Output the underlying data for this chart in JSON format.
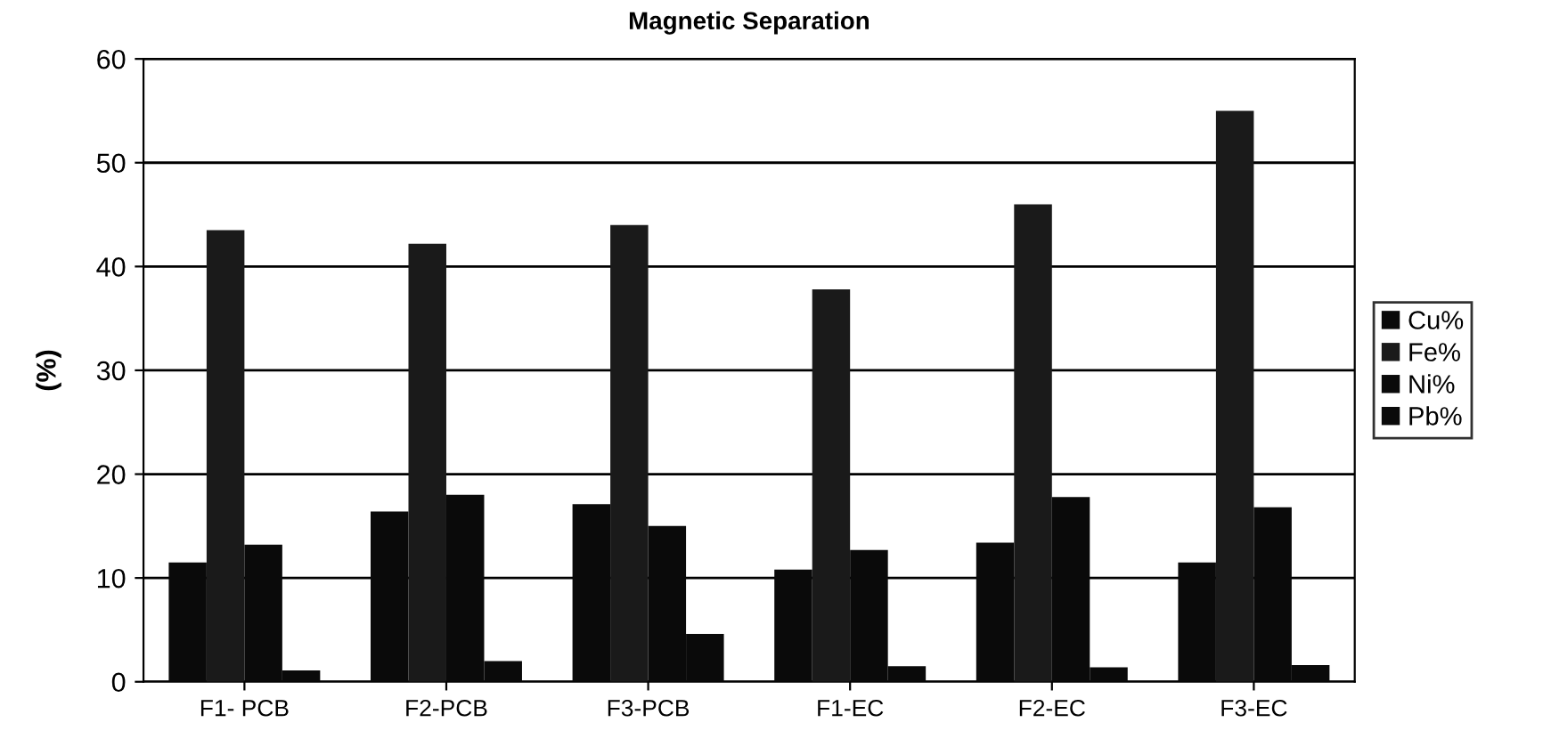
{
  "chart_data": {
    "type": "bar",
    "title": "Magnetic Separation",
    "ylabel": "(%)",
    "categories": [
      "F1- PCB",
      "F2-PCB",
      "F3-PCB",
      "F1-EC",
      "F2-EC",
      "F3-EC"
    ],
    "series": [
      {
        "name": "Cu%",
        "color": "#0a0a0a",
        "values": [
          11.5,
          16.4,
          17.1,
          10.8,
          13.4,
          11.5
        ]
      },
      {
        "name": "Fe%",
        "color": "#1a1a1a",
        "values": [
          43.5,
          42.2,
          44,
          37.8,
          46,
          55
        ]
      },
      {
        "name": "Ni%",
        "color": "#0a0a0a",
        "values": [
          13.2,
          18,
          15,
          12.7,
          17.8,
          16.8
        ]
      },
      {
        "name": "Pb%",
        "color": "#0a0a0a",
        "values": [
          1.1,
          2,
          4.6,
          1.5,
          1.4,
          1.6
        ]
      }
    ],
    "ylim": [
      0,
      60
    ],
    "yticks": [
      0,
      10,
      20,
      30,
      40,
      50,
      60
    ],
    "grid": "y",
    "legend": "right"
  }
}
